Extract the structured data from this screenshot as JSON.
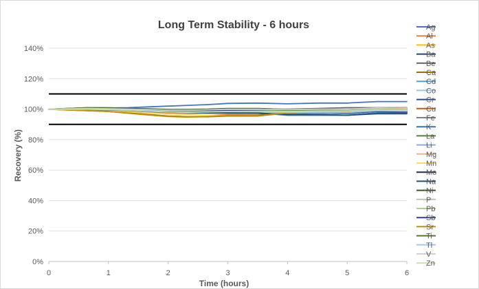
{
  "chart_data": {
    "type": "line",
    "title": "Long Term Stability - 6 hours",
    "xlabel": "Time (hours)",
    "ylabel": "Recovery (%)",
    "xlim": [
      0,
      6
    ],
    "ylim": [
      0,
      150
    ],
    "x_ticks": [
      "0",
      "1",
      "2",
      "3",
      "4",
      "5",
      "6"
    ],
    "y_ticks": [
      "0%",
      "20%",
      "40%",
      "60%",
      "80%",
      "100%",
      "120%",
      "140%"
    ],
    "grid": "horizontal",
    "legend_position": "right",
    "limit_lines": [
      90,
      110
    ],
    "x": [
      0,
      0.33,
      0.67,
      1,
      1.33,
      1.67,
      2,
      2.33,
      2.67,
      3,
      3.5,
      4,
      4.5,
      5,
      5.5,
      6
    ],
    "series": [
      {
        "name": "Ag",
        "color": "#4472c4",
        "values": [
          100,
          100.5,
          101,
          100.8,
          101,
          101.5,
          102,
          102.5,
          103,
          103.8,
          104,
          103.5,
          104,
          104,
          105,
          105
        ]
      },
      {
        "name": "Al",
        "color": "#ed7d31",
        "values": [
          100,
          99.8,
          99.5,
          99,
          98.5,
          98,
          97.5,
          97,
          97,
          96.5,
          96.5,
          97.5,
          98.5,
          99,
          100,
          101
        ]
      },
      {
        "name": "As",
        "color": "#ffc000",
        "values": [
          100,
          99.5,
          99,
          98.5,
          97.5,
          96.5,
          95.5,
          95,
          95.5,
          96,
          96,
          97.5,
          98.5,
          99,
          100,
          100.5
        ]
      },
      {
        "name": "Ba",
        "color": "#264478",
        "values": [
          100,
          100,
          99.8,
          99.5,
          99,
          98.5,
          98,
          97.5,
          97.5,
          97,
          97,
          96.5,
          96.5,
          96,
          97.5,
          97.5
        ]
      },
      {
        "name": "Be",
        "color": "#636363",
        "values": [
          100,
          100.3,
          100.5,
          100.2,
          100,
          99.8,
          99.5,
          99.5,
          99.8,
          100,
          100,
          100,
          100.5,
          101,
          101,
          101
        ]
      },
      {
        "name": "Ca",
        "color": "#997300",
        "values": [
          100,
          99.5,
          99,
          98.5,
          97.5,
          96.5,
          95.5,
          95,
          95,
          95.5,
          95.5,
          97.5,
          98,
          98,
          99.5,
          100
        ]
      },
      {
        "name": "Cd",
        "color": "#5b9bd5",
        "values": [
          100,
          100,
          100,
          99.5,
          99,
          98.5,
          98,
          98,
          98,
          98,
          97.5,
          97,
          97.5,
          97,
          98.5,
          98
        ]
      },
      {
        "name": "Co",
        "color": "#9dc3e6",
        "values": [
          100,
          100,
          100,
          99.8,
          99.5,
          99,
          98.5,
          98.5,
          98.8,
          99,
          99,
          98.5,
          98.5,
          98.5,
          99.5,
          99
        ]
      },
      {
        "name": "Cr",
        "color": "#2e4a86",
        "values": [
          100,
          100.2,
          100.3,
          100,
          99.8,
          99.5,
          99,
          99,
          99,
          99,
          98.5,
          98,
          98,
          97.5,
          98.5,
          98
        ]
      },
      {
        "name": "Cu",
        "color": "#c55a11",
        "values": [
          100,
          99.8,
          99.5,
          99,
          98.5,
          98,
          97.5,
          97,
          97.5,
          98,
          98,
          98.5,
          99,
          99,
          100,
          100.5
        ]
      },
      {
        "name": "Fe",
        "color": "#7f7f7f",
        "values": [
          100,
          100,
          100,
          99.8,
          99.5,
          99.3,
          99,
          99,
          99.3,
          99.5,
          99.5,
          99.5,
          99.8,
          99.5,
          100.5,
          100
        ]
      },
      {
        "name": "K",
        "color": "#2e75b6",
        "values": [
          100,
          100,
          100,
          99.5,
          99,
          98.5,
          98,
          97.5,
          97.5,
          97.5,
          97.5,
          96,
          96,
          96,
          97.5,
          97.5
        ]
      },
      {
        "name": "La",
        "color": "#548235",
        "values": [
          100,
          100.5,
          101,
          101,
          100.5,
          100,
          99.5,
          99.5,
          99.8,
          100,
          100,
          99.5,
          99.5,
          99,
          100,
          100
        ]
      },
      {
        "name": "Li",
        "color": "#8faadc",
        "values": [
          100,
          100.3,
          100.5,
          100.3,
          100,
          99.5,
          99,
          99,
          99.5,
          100,
          100,
          99.5,
          99.5,
          99,
          100.5,
          100
        ]
      },
      {
        "name": "Mg",
        "color": "#f4b183",
        "values": [
          100,
          99.8,
          99.5,
          99.2,
          98.8,
          98.3,
          97.8,
          97.5,
          97.8,
          98.2,
          98.2,
          98.8,
          99.2,
          99.5,
          100.5,
          100.8
        ]
      },
      {
        "name": "Mn",
        "color": "#ffd966",
        "values": [
          100,
          99.7,
          99.3,
          99,
          98.3,
          97.5,
          96.8,
          96.5,
          96.8,
          97.2,
          97.2,
          98.3,
          99,
          99.3,
          100.3,
          100.5
        ]
      },
      {
        "name": "Mo",
        "color": "#1f2d4d",
        "values": [
          100,
          100.3,
          100.5,
          100.5,
          100.3,
          100,
          99.7,
          99.5,
          99.8,
          100.2,
          100.2,
          99.5,
          99.5,
          99.3,
          100,
          99.5
        ]
      },
      {
        "name": "Na",
        "color": "#1f4e79",
        "values": [
          100,
          100,
          99.8,
          99.5,
          99,
          98.5,
          98,
          97.8,
          97.5,
          97.5,
          97.5,
          96.5,
          96.5,
          96,
          97,
          97
        ]
      },
      {
        "name": "Ni",
        "color": "#375623",
        "values": [
          100,
          100.5,
          100.8,
          100.8,
          100.5,
          100.2,
          99.8,
          99.8,
          100,
          100.5,
          100.5,
          99.8,
          99.8,
          99.5,
          100.3,
          100
        ]
      },
      {
        "name": "P",
        "color": "#bfbfbf",
        "values": [
          100,
          100.2,
          100.3,
          100,
          99.8,
          99.5,
          99.2,
          99.2,
          99.5,
          99.8,
          99.8,
          99.5,
          99.8,
          99.8,
          100.5,
          100.2
        ]
      },
      {
        "name": "Pb",
        "color": "#a9d18e",
        "values": [
          100,
          100.2,
          100.3,
          100,
          99.5,
          99,
          98.5,
          98.5,
          98.8,
          99,
          99,
          99,
          99.3,
          99.3,
          100,
          100
        ]
      },
      {
        "name": "Sb",
        "color": "#2f3f8f",
        "values": [
          100,
          100,
          100,
          99.8,
          99.5,
          99.2,
          98.8,
          98.8,
          98.8,
          99,
          98.8,
          98.3,
          98.3,
          98,
          98.8,
          98.5
        ]
      },
      {
        "name": "Sr",
        "color": "#bf8f00",
        "values": [
          100,
          99.5,
          99,
          98.5,
          97.3,
          96.2,
          95.2,
          94.8,
          95.2,
          95.8,
          95.8,
          97.5,
          98.2,
          98.3,
          99.8,
          100.3
        ]
      },
      {
        "name": "Ti",
        "color": "#4f7a28",
        "values": [
          100,
          100.3,
          100.7,
          100.7,
          100.3,
          99.8,
          99.3,
          99.3,
          99.6,
          100,
          100,
          99.3,
          99.3,
          99,
          99.8,
          99.5
        ]
      },
      {
        "name": "Tl",
        "color": "#a6c8ea",
        "values": [
          100,
          100,
          100,
          99.8,
          99.3,
          98.8,
          98.3,
          98.2,
          98.3,
          98.5,
          98.3,
          97.8,
          98,
          97.8,
          99,
          98.8
        ]
      },
      {
        "name": "V",
        "color": "#d0d0d0",
        "values": [
          100,
          100.2,
          100.5,
          100.3,
          100,
          99.7,
          99.3,
          99.3,
          99.6,
          100,
          100,
          99.7,
          100,
          100,
          100.8,
          100.5
        ]
      },
      {
        "name": "Zn",
        "color": "#c5e0b4",
        "values": [
          100,
          100,
          100,
          99.7,
          99.2,
          98.7,
          98.2,
          98,
          98.2,
          98.5,
          98.5,
          98.5,
          98.8,
          98.8,
          99.7,
          99.5
        ]
      }
    ]
  }
}
